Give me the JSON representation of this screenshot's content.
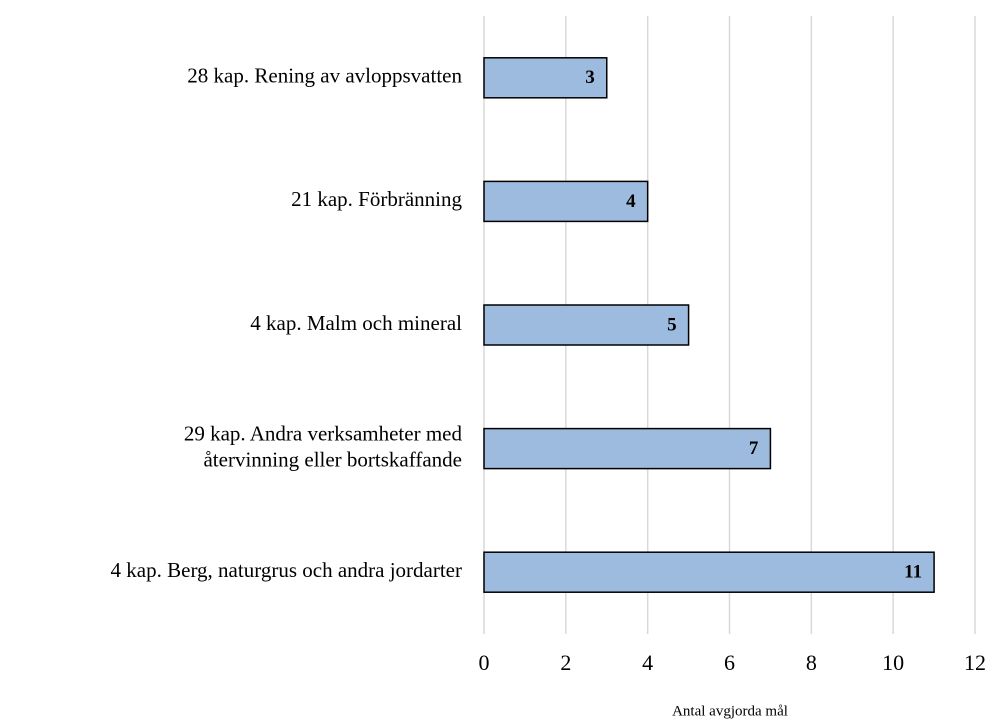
{
  "chart_data": {
    "type": "bar",
    "orientation": "horizontal",
    "categories": [
      "28 kap. Rening av avloppsvatten",
      "21 kap. Förbränning",
      "4 kap. Malm och mineral",
      "29 kap. Andra verksamheter med\nåtervinning eller bortskaffande",
      "4 kap. Berg, naturgrus och andra jordarter"
    ],
    "values": [
      3,
      4,
      5,
      7,
      11
    ],
    "color": "#9dbbdf",
    "xlabel": "Antal avgjorda mål",
    "xlim": [
      0,
      12
    ],
    "xticks": [
      0,
      2,
      4,
      6,
      8,
      10,
      12
    ],
    "grid": true
  }
}
